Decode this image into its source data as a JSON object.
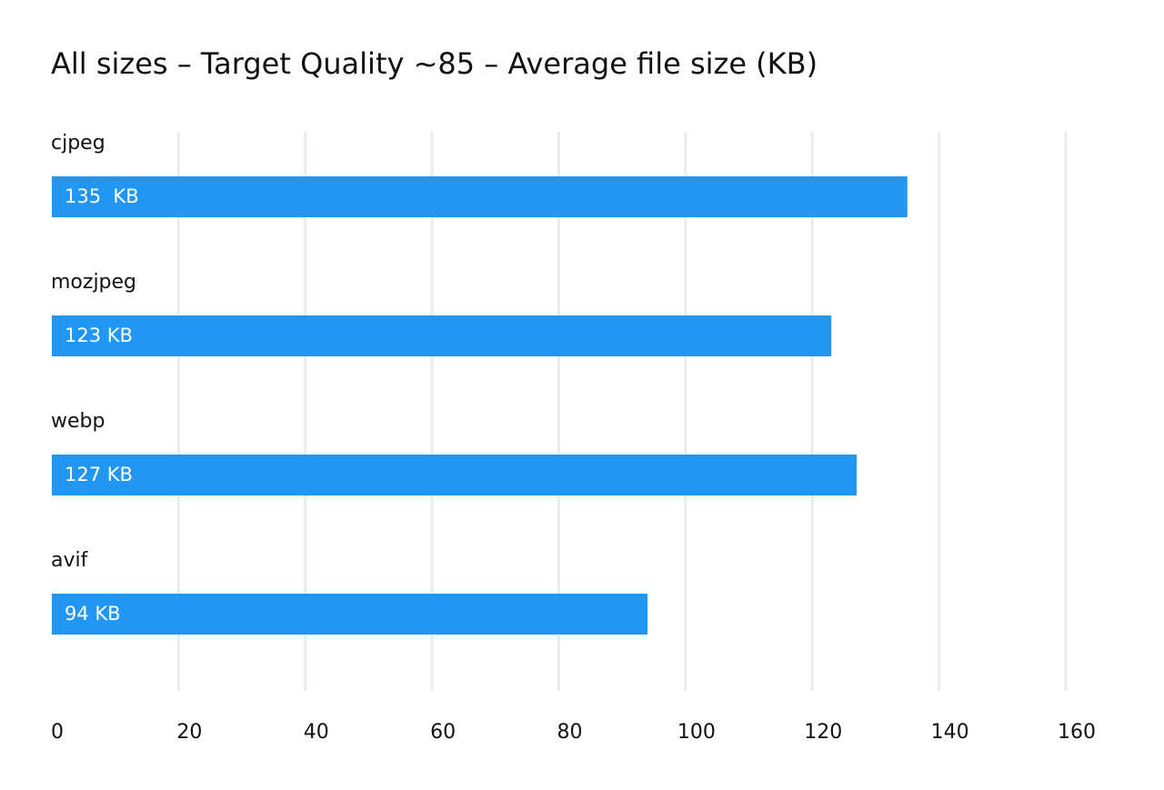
{
  "chart_data": {
    "type": "bar",
    "orientation": "horizontal",
    "title": "All sizes – Target Quality ~85 – Average file size (KB)",
    "categories": [
      "cjpeg",
      "mozjpeg",
      "webp",
      "avif"
    ],
    "values": [
      135,
      123,
      127,
      94
    ],
    "value_labels": [
      "135  KB",
      "123 KB",
      "127 KB",
      "94 KB"
    ],
    "color": "#2196f3",
    "xlim": [
      0,
      160
    ],
    "xticks": [
      0,
      20,
      40,
      60,
      80,
      100,
      120,
      140,
      160
    ],
    "grid": true
  }
}
